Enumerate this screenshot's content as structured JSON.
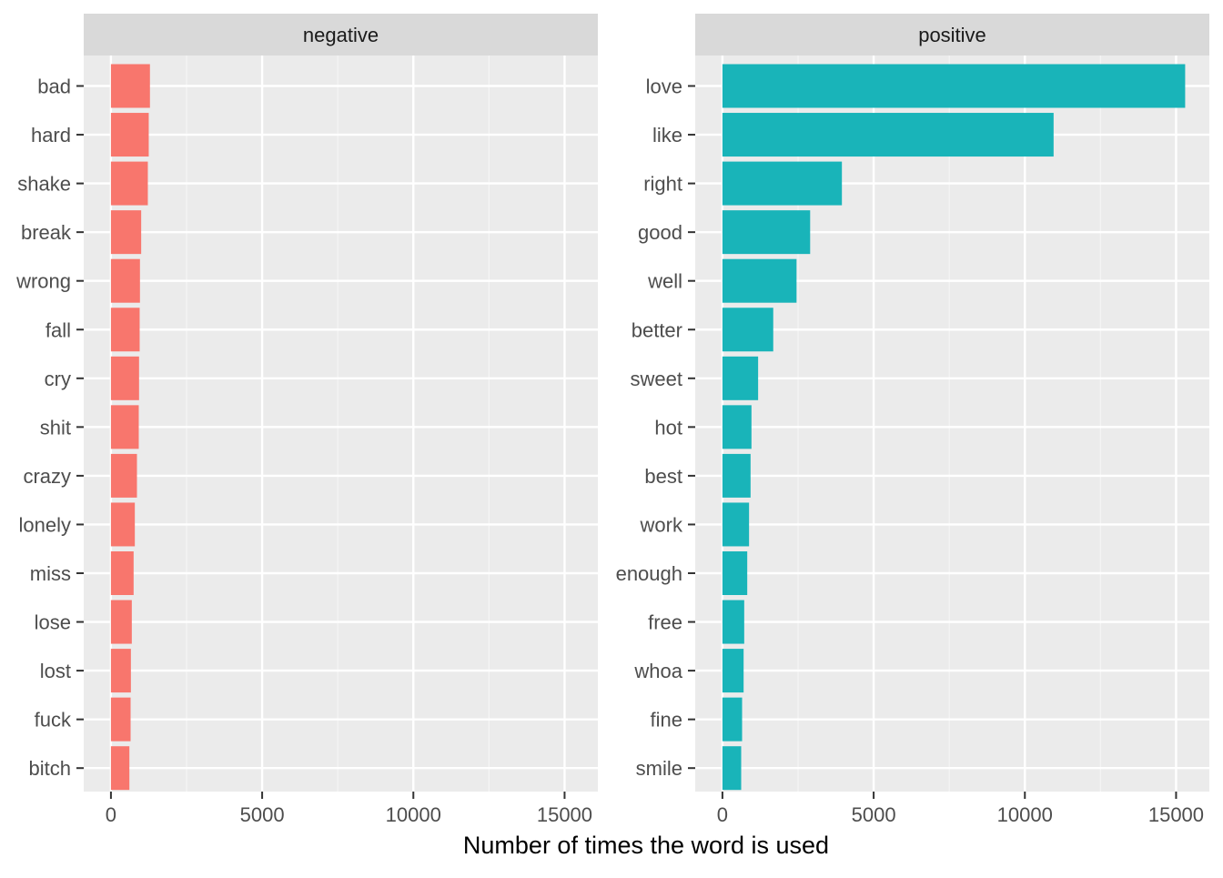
{
  "chart_data": {
    "type": "bar",
    "orientation": "horizontal",
    "xlabel": "Number of times the word is used",
    "xlim": [
      -900,
      16100
    ],
    "xticks": [
      0,
      5000,
      10000,
      15000
    ],
    "minor_xticks": [
      2500,
      7500,
      12500
    ],
    "grid": true,
    "legend": "none",
    "panels": [
      {
        "name": "negative",
        "color": "#F8766D",
        "categories": [
          "bad",
          "hard",
          "shake",
          "break",
          "wrong",
          "fall",
          "cry",
          "shit",
          "crazy",
          "lonely",
          "miss",
          "lose",
          "lost",
          "fuck",
          "bitch"
        ],
        "values": [
          1290,
          1250,
          1220,
          1000,
          960,
          950,
          930,
          920,
          860,
          790,
          750,
          690,
          660,
          650,
          610
        ]
      },
      {
        "name": "positive",
        "color": "#19B4B9",
        "categories": [
          "love",
          "like",
          "right",
          "good",
          "well",
          "better",
          "sweet",
          "hot",
          "best",
          "work",
          "enough",
          "free",
          "whoa",
          "fine",
          "smile"
        ],
        "values": [
          15300,
          10950,
          3950,
          2900,
          2450,
          1680,
          1180,
          960,
          930,
          880,
          820,
          720,
          700,
          650,
          620
        ]
      }
    ]
  }
}
